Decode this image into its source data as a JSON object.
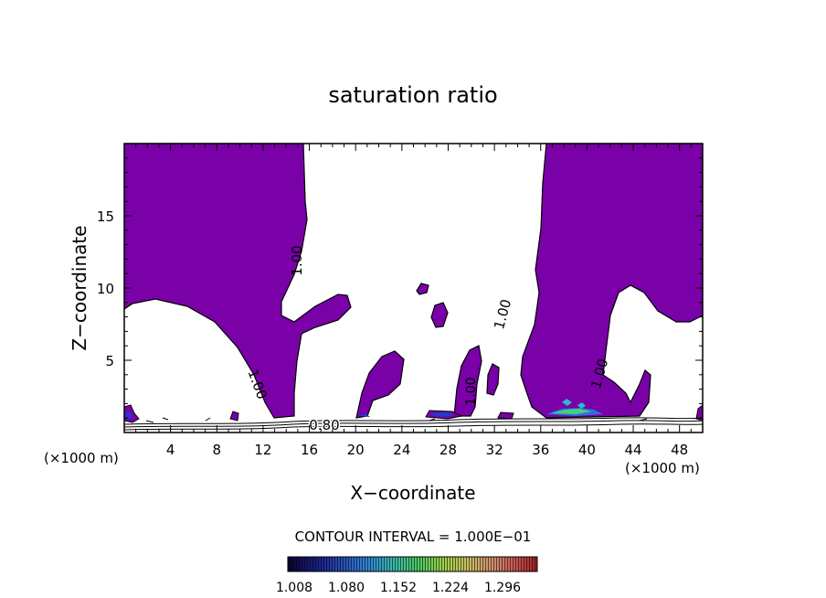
{
  "chart_data": {
    "type": "heatmap",
    "subtype": "filled-contour",
    "title": "saturation ratio",
    "xlabel": "X−coordinate",
    "ylabel": "Z−coordinate",
    "x_unit_left": "(×1000 m)",
    "x_unit_right": "(×1000 m)",
    "xlim": [
      0,
      50
    ],
    "ylim": [
      0,
      20
    ],
    "x_ticks": [
      4,
      8,
      12,
      16,
      20,
      24,
      28,
      32,
      36,
      40,
      44,
      48
    ],
    "y_ticks": [
      5,
      10,
      15
    ],
    "x_tick_labels": [
      "4",
      "8",
      "12",
      "16",
      "20",
      "24",
      "28",
      "32",
      "36",
      "40",
      "44",
      "48"
    ],
    "y_tick_labels": [
      "5",
      "10",
      "15"
    ],
    "fill_color": "#7a00a8",
    "contour_labels": [
      "1.00",
      "1.00",
      "1.00",
      "1.00",
      "1.00",
      "1.00",
      "0.80"
    ],
    "contour_interval_text": "CONTOUR INTERVAL = 1.000E−01",
    "colorbar": {
      "tick_labels": [
        "1.008",
        "1.080",
        "1.152",
        "1.224",
        "1.296"
      ],
      "colors": [
        "#0a0030",
        "#1a1a80",
        "#2f5fd0",
        "#2fb0c0",
        "#40c060",
        "#90d040",
        "#d0c040",
        "#d08040",
        "#c04040",
        "#a02020"
      ]
    },
    "grid": false,
    "legend": "none"
  }
}
